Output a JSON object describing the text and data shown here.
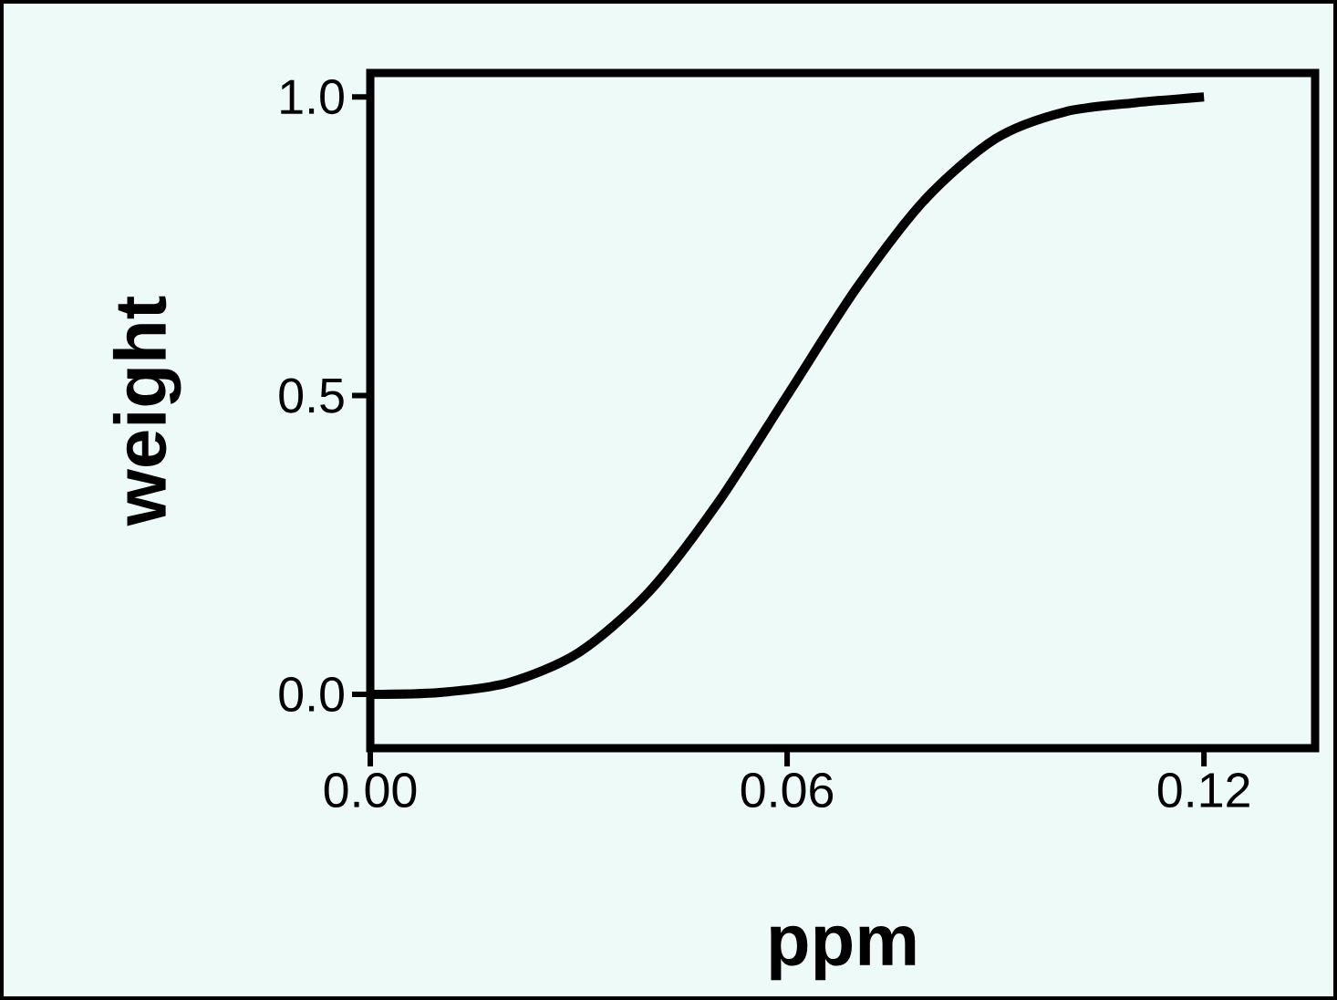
{
  "chart_data": {
    "type": "line",
    "xlabel": "ppm",
    "ylabel": "weight",
    "x": [
      0,
      0.01,
      0.02,
      0.03,
      0.04,
      0.05,
      0.06,
      0.07,
      0.08,
      0.09,
      0.1,
      0.11,
      0.12
    ],
    "series": [
      {
        "color": "#000000",
        "values": [
          0,
          0.003,
          0.02,
          0.07,
          0.17,
          0.32,
          0.5,
          0.68,
          0.83,
          0.93,
          0.975,
          0.99,
          1.0
        ]
      }
    ],
    "xlim": [
      0,
      0.136
    ],
    "ylim": [
      -0.09,
      1.04
    ],
    "xticks": [
      {
        "value": 0,
        "label": "0.00"
      },
      0.06,
      0.12
    ],
    "yticks": [
      {
        "value": 0,
        "label": "0.0"
      },
      0.5,
      {
        "value": 1,
        "label": "1.0"
      }
    ],
    "grid": false,
    "marker": "none",
    "line_style": "solid"
  }
}
